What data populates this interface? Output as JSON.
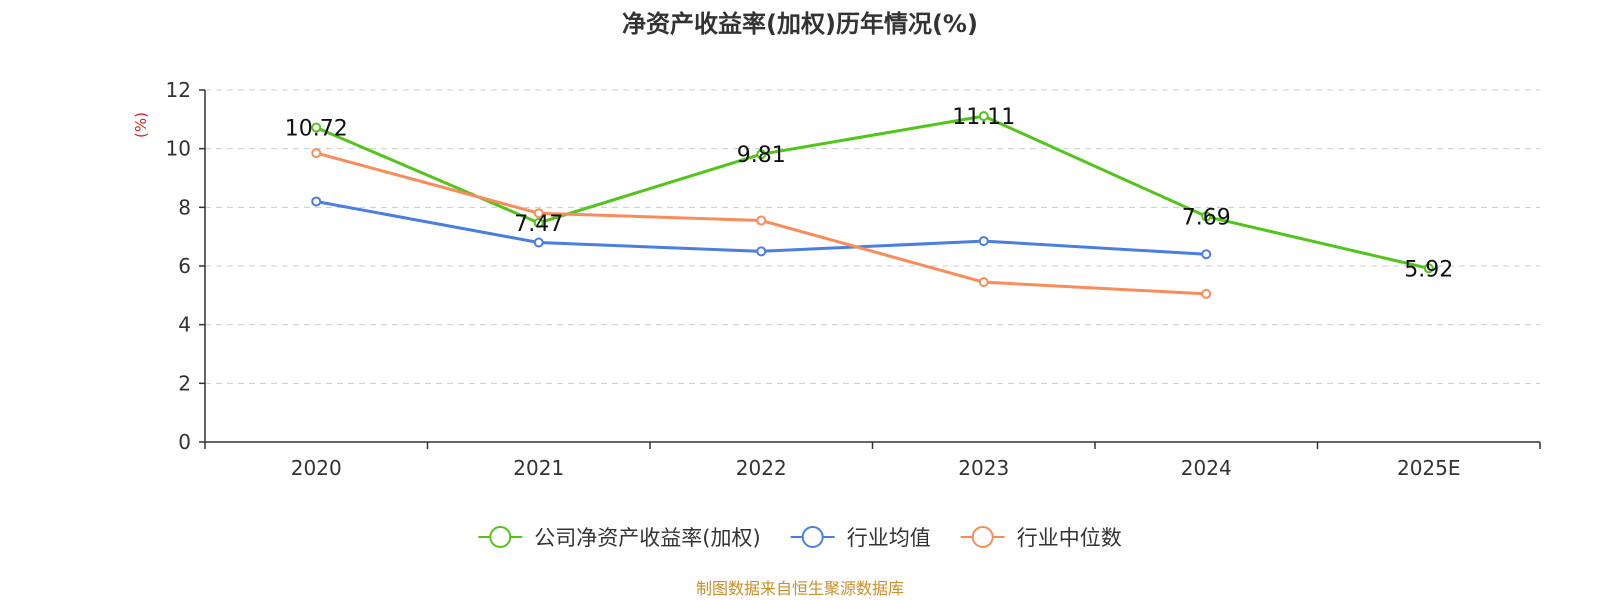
{
  "chart_data": {
    "type": "line",
    "title": "净资产收益率(加权)历年情况(%)",
    "ylabel": "(%)",
    "xlabel": "",
    "categories": [
      "2020",
      "2021",
      "2022",
      "2023",
      "2024",
      "2025E"
    ],
    "ylim": [
      0,
      12
    ],
    "yticks": [
      0,
      2,
      4,
      6,
      8,
      10,
      12
    ],
    "grid": true,
    "legend_position": "bottom",
    "series": [
      {
        "name": "公司净资产收益率(加权)",
        "color": "#52c41a",
        "values": [
          10.72,
          7.47,
          9.81,
          11.11,
          7.69,
          5.92
        ],
        "labels": [
          "10.72",
          "7.47",
          "9.81",
          "11.11",
          "7.69",
          "5.92"
        ]
      },
      {
        "name": "行业均值",
        "color": "#4a7fe0",
        "values": [
          8.2,
          6.8,
          6.5,
          6.85,
          6.4,
          null
        ]
      },
      {
        "name": "行业中位数",
        "color": "#fa8c5a",
        "values": [
          9.85,
          7.8,
          7.55,
          5.45,
          5.05,
          null
        ]
      }
    ]
  },
  "source": "制图数据来自恒生聚源数据库",
  "colors": {
    "axis": "#333333",
    "grid": "#cccccc",
    "unit": "#e02020",
    "source": "#c8902a"
  }
}
